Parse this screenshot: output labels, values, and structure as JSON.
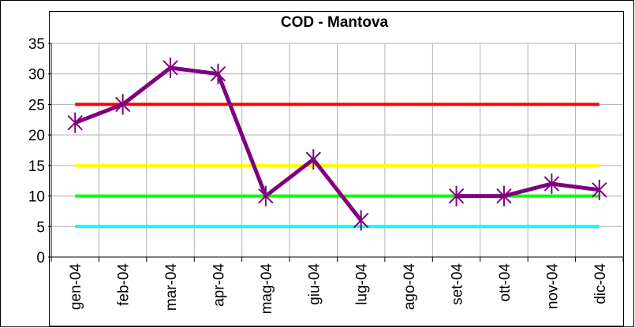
{
  "chart_data": {
    "type": "line",
    "title": "COD - Mantova",
    "categories": [
      "gen-04",
      "feb-04",
      "mar-04",
      "apr-04",
      "mag-04",
      "giu-04",
      "lug-04",
      "ago-04",
      "set-04",
      "ott-04",
      "nov-04",
      "dic-04"
    ],
    "series": [
      {
        "color": "#ff0000",
        "values": [
          25,
          25,
          25,
          25,
          25,
          25,
          25,
          25,
          25,
          25,
          25,
          25
        ]
      },
      {
        "color": "#ffff00",
        "values": [
          15,
          15,
          15,
          15,
          15,
          15,
          15,
          15,
          15,
          15,
          15,
          15
        ]
      },
      {
        "color": "#00ff00",
        "values": [
          10,
          10,
          10,
          10,
          10,
          10,
          10,
          10,
          10,
          10,
          10,
          10
        ]
      },
      {
        "color": "#00ffff",
        "values": [
          5,
          5,
          5,
          5,
          5,
          5,
          5,
          5,
          5,
          5,
          5,
          5
        ]
      },
      {
        "color": "#800080",
        "marker": "star",
        "values": [
          22,
          25,
          31,
          30,
          10,
          16,
          6,
          null,
          10,
          10,
          12,
          11
        ]
      }
    ],
    "ylim": [
      0,
      35
    ],
    "yticks": [
      0,
      5,
      10,
      15,
      20,
      25,
      30,
      35
    ],
    "grid": true
  }
}
